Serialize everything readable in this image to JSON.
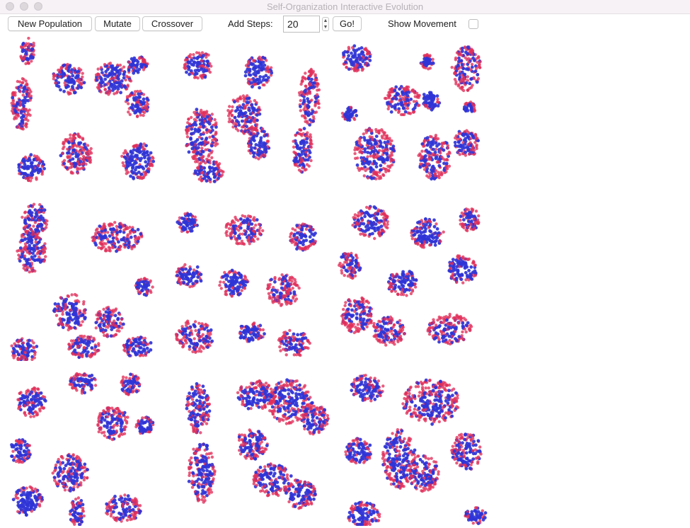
{
  "window": {
    "title": "Self-Organization Interactive Evolution"
  },
  "toolbar": {
    "new_population_label": "New Population",
    "mutate_label": "Mutate",
    "crossover_label": "Crossover",
    "add_steps_label": "Add Steps:",
    "steps_value": "20",
    "go_label": "Go!",
    "show_movement_label": "Show Movement",
    "show_movement_checked": false
  },
  "colors": {
    "particle_red": "#e0305a",
    "particle_blue": "#2f34d6"
  },
  "population": {
    "rows": 3,
    "columns": 3,
    "individuals": [
      {
        "id": "individual-1"
      },
      {
        "id": "individual-2"
      },
      {
        "id": "individual-3"
      },
      {
        "id": "individual-4"
      },
      {
        "id": "individual-5"
      },
      {
        "id": "individual-6"
      },
      {
        "id": "individual-7"
      },
      {
        "id": "individual-8"
      },
      {
        "id": "individual-9"
      }
    ]
  }
}
